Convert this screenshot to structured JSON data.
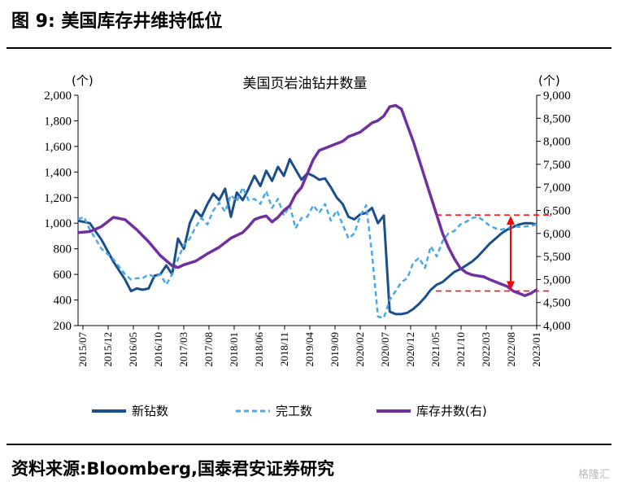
{
  "figure": {
    "title": "图 9:  美国库存井维持低位",
    "source": "资料来源:Bloomberg,国泰君安证券研究",
    "watermark": "格隆汇"
  },
  "chart_data": {
    "type": "line",
    "title": "美国页岩油钻井数量",
    "y_left": {
      "unit": "(个)",
      "min": 200,
      "max": 2000,
      "ticks": [
        200,
        400,
        600,
        800,
        1000,
        1200,
        1400,
        1600,
        1800,
        2000
      ],
      "tick_labels": [
        "200",
        "400",
        "600",
        "800",
        "1,000",
        "1,200",
        "1,400",
        "1,600",
        "1,800",
        "2,000"
      ]
    },
    "y_right": {
      "unit": "(个)",
      "min": 4000,
      "max": 9000,
      "ticks": [
        4000,
        4500,
        5000,
        5500,
        6000,
        6500,
        7000,
        7500,
        8000,
        8500,
        9000
      ],
      "tick_labels": [
        "4,000",
        "4,500",
        "5,000",
        "5,500",
        "6,000",
        "6,500",
        "7,000",
        "7,500",
        "8,000",
        "8,500",
        "9,000"
      ]
    },
    "x_tick_labels": [
      "2015/07",
      "2015/12",
      "2016/05",
      "2016/10",
      "2017/03",
      "2017/08",
      "2018/01",
      "2018/06",
      "2018/11",
      "2019/04",
      "2019/09",
      "2020/02",
      "2020/07",
      "2020/12",
      "2021/05",
      "2021/10",
      "2022/03",
      "2022/08",
      "2023/01"
    ],
    "grid": false,
    "legend_position": "bottom",
    "series": [
      {
        "name": "新钻数",
        "axis": "left",
        "color": "#1a4f8b",
        "style": "solid",
        "points": [
          [
            0,
            1020
          ],
          [
            2,
            1000
          ],
          [
            4,
            870
          ],
          [
            6,
            700
          ],
          [
            8,
            560
          ],
          [
            9,
            470
          ],
          [
            10,
            490
          ],
          [
            11,
            480
          ],
          [
            12,
            490
          ],
          [
            13,
            590
          ],
          [
            14,
            600
          ],
          [
            15,
            670
          ],
          [
            16,
            600
          ],
          [
            17,
            880
          ],
          [
            18,
            800
          ],
          [
            19,
            1000
          ],
          [
            20,
            1100
          ],
          [
            21,
            1050
          ],
          [
            22,
            1150
          ],
          [
            23,
            1230
          ],
          [
            24,
            1180
          ],
          [
            25,
            1270
          ],
          [
            26,
            1050
          ],
          [
            27,
            1240
          ],
          [
            28,
            1180
          ],
          [
            29,
            1270
          ],
          [
            30,
            1370
          ],
          [
            31,
            1290
          ],
          [
            32,
            1410
          ],
          [
            33,
            1330
          ],
          [
            34,
            1440
          ],
          [
            35,
            1370
          ],
          [
            36,
            1500
          ],
          [
            37,
            1420
          ],
          [
            38,
            1340
          ],
          [
            39,
            1390
          ],
          [
            40,
            1370
          ],
          [
            41,
            1340
          ],
          [
            42,
            1350
          ],
          [
            43,
            1280
          ],
          [
            44,
            1200
          ],
          [
            45,
            1150
          ],
          [
            46,
            1050
          ],
          [
            47,
            1030
          ],
          [
            48,
            1070
          ],
          [
            49,
            1080
          ],
          [
            50,
            1120
          ],
          [
            51,
            1000
          ],
          [
            52,
            1060
          ],
          [
            53,
            310
          ],
          [
            54,
            290
          ],
          [
            55,
            290
          ],
          [
            56,
            300
          ],
          [
            57,
            330
          ],
          [
            58,
            370
          ],
          [
            59,
            420
          ],
          [
            60,
            480
          ],
          [
            61,
            520
          ],
          [
            62,
            540
          ],
          [
            63,
            580
          ],
          [
            64,
            620
          ],
          [
            65,
            640
          ],
          [
            66,
            670
          ],
          [
            67,
            700
          ],
          [
            68,
            740
          ],
          [
            69,
            790
          ],
          [
            70,
            840
          ],
          [
            71,
            880
          ],
          [
            72,
            920
          ],
          [
            73,
            950
          ],
          [
            74,
            970
          ],
          [
            75,
            990
          ],
          [
            76,
            1000
          ],
          [
            77,
            1000
          ],
          [
            78,
            990
          ]
        ]
      },
      {
        "name": "完工数",
        "axis": "left",
        "color": "#4aa8e8",
        "style": "dashed",
        "points": [
          [
            0,
            1030
          ],
          [
            1,
            1050
          ],
          [
            2,
            950
          ],
          [
            4,
            800
          ],
          [
            6,
            720
          ],
          [
            8,
            600
          ],
          [
            9,
            560
          ],
          [
            10,
            570
          ],
          [
            11,
            570
          ],
          [
            12,
            600
          ],
          [
            13,
            580
          ],
          [
            14,
            600
          ],
          [
            15,
            520
          ],
          [
            16,
            600
          ],
          [
            17,
            720
          ],
          [
            18,
            830
          ],
          [
            19,
            880
          ],
          [
            20,
            970
          ],
          [
            21,
            1040
          ],
          [
            22,
            990
          ],
          [
            23,
            1100
          ],
          [
            24,
            1160
          ],
          [
            25,
            1090
          ],
          [
            26,
            1220
          ],
          [
            27,
            1170
          ],
          [
            28,
            1280
          ],
          [
            29,
            1180
          ],
          [
            30,
            1190
          ],
          [
            31,
            1150
          ],
          [
            32,
            1250
          ],
          [
            33,
            1120
          ],
          [
            34,
            1190
          ],
          [
            35,
            1060
          ],
          [
            36,
            1140
          ],
          [
            37,
            960
          ],
          [
            38,
            1040
          ],
          [
            39,
            1050
          ],
          [
            40,
            1140
          ],
          [
            41,
            1080
          ],
          [
            42,
            1150
          ],
          [
            43,
            1020
          ],
          [
            44,
            1100
          ],
          [
            45,
            990
          ],
          [
            46,
            880
          ],
          [
            47,
            920
          ],
          [
            48,
            1060
          ],
          [
            49,
            1140
          ],
          [
            50,
            760
          ],
          [
            51,
            270
          ],
          [
            52,
            260
          ],
          [
            53,
            400
          ],
          [
            54,
            470
          ],
          [
            55,
            540
          ],
          [
            56,
            570
          ],
          [
            57,
            690
          ],
          [
            58,
            730
          ],
          [
            59,
            650
          ],
          [
            60,
            820
          ],
          [
            61,
            740
          ],
          [
            62,
            860
          ],
          [
            63,
            920
          ],
          [
            64,
            940
          ],
          [
            65,
            990
          ],
          [
            66,
            1010
          ],
          [
            67,
            1040
          ],
          [
            68,
            1050
          ],
          [
            69,
            1020
          ],
          [
            70,
            980
          ],
          [
            71,
            960
          ],
          [
            72,
            950
          ],
          [
            73,
            960
          ],
          [
            74,
            980
          ],
          [
            75,
            970
          ],
          [
            76,
            975
          ],
          [
            77,
            980
          ],
          [
            78,
            990
          ]
        ]
      },
      {
        "name": "库存井数(右)",
        "axis": "right",
        "color": "#7030a0",
        "style": "solid",
        "points": [
          [
            0,
            6020
          ],
          [
            2,
            6040
          ],
          [
            4,
            6150
          ],
          [
            6,
            6350
          ],
          [
            8,
            6300
          ],
          [
            10,
            6080
          ],
          [
            12,
            5820
          ],
          [
            14,
            5520
          ],
          [
            16,
            5300
          ],
          [
            17,
            5260
          ],
          [
            18,
            5320
          ],
          [
            20,
            5400
          ],
          [
            22,
            5560
          ],
          [
            24,
            5700
          ],
          [
            26,
            5900
          ],
          [
            28,
            6020
          ],
          [
            29,
            6150
          ],
          [
            30,
            6300
          ],
          [
            31,
            6350
          ],
          [
            32,
            6380
          ],
          [
            33,
            6250
          ],
          [
            34,
            6350
          ],
          [
            35,
            6500
          ],
          [
            36,
            6600
          ],
          [
            37,
            6850
          ],
          [
            38,
            7000
          ],
          [
            39,
            7300
          ],
          [
            40,
            7600
          ],
          [
            41,
            7800
          ],
          [
            42,
            7850
          ],
          [
            43,
            7900
          ],
          [
            44,
            7950
          ],
          [
            45,
            8000
          ],
          [
            46,
            8100
          ],
          [
            47,
            8150
          ],
          [
            48,
            8200
          ],
          [
            49,
            8300
          ],
          [
            50,
            8400
          ],
          [
            51,
            8450
          ],
          [
            52,
            8550
          ],
          [
            53,
            8750
          ],
          [
            54,
            8780
          ],
          [
            55,
            8700
          ],
          [
            56,
            8350
          ],
          [
            57,
            8000
          ],
          [
            58,
            7600
          ],
          [
            59,
            7200
          ],
          [
            60,
            6800
          ],
          [
            61,
            6400
          ],
          [
            62,
            6000
          ],
          [
            63,
            5700
          ],
          [
            64,
            5450
          ],
          [
            65,
            5250
          ],
          [
            66,
            5150
          ],
          [
            67,
            5100
          ],
          [
            68,
            5080
          ],
          [
            69,
            5060
          ],
          [
            70,
            5000
          ],
          [
            71,
            4950
          ],
          [
            72,
            4900
          ],
          [
            73,
            4850
          ],
          [
            74,
            4750
          ],
          [
            75,
            4700
          ],
          [
            76,
            4650
          ],
          [
            77,
            4700
          ],
          [
            78,
            4780
          ]
        ]
      }
    ],
    "annotations": {
      "red_dashed_high": 6400,
      "red_dashed_low": 4750,
      "red_dashed_color": "#ff0000",
      "double_arrow_color": "#ff0000"
    }
  }
}
